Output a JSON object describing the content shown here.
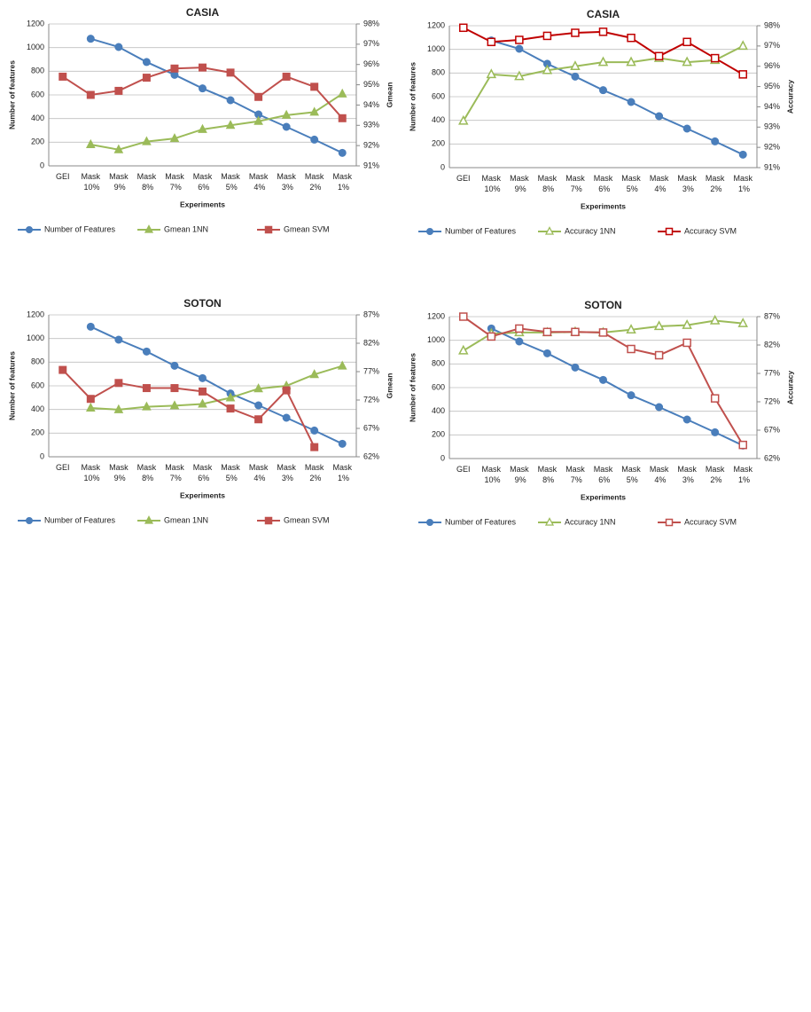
{
  "chart_data": [
    {
      "type": "line",
      "title": "CASIA",
      "x_label": "Experiments",
      "y_label": "Number of features",
      "y2_label": "Gmean",
      "categories": [
        "GEI",
        "Mask 10%",
        "Mask 9%",
        "Mask 8%",
        "Mask 7%",
        "Mask 6%",
        "Mask 5%",
        "Mask 4%",
        "Mask 3%",
        "Mask 2%",
        "Mask 1%"
      ],
      "ylim": [
        0,
        1200
      ],
      "yticks": [
        0,
        200,
        400,
        600,
        800,
        1000,
        1200
      ],
      "y2lim": [
        91,
        98
      ],
      "y2ticks": [
        {
          "value": 91,
          "label": "91%"
        },
        {
          "value": 92,
          "label": "92%"
        },
        {
          "value": 93,
          "label": "93%"
        },
        {
          "value": 94,
          "label": "94%"
        },
        {
          "value": 95,
          "label": "95%"
        },
        {
          "value": 96,
          "label": "96%"
        },
        {
          "value": 97,
          "label": "97%"
        },
        {
          "value": 98,
          "label": "98%"
        }
      ],
      "grid": true,
      "series": [
        {
          "name": "Number of  Features",
          "color": "#4a7ebb",
          "marker": "circle",
          "hollow": false,
          "values": [
            null,
            1075,
            1005,
            878,
            770,
            655,
            555,
            435,
            330,
            222,
            110
          ]
        },
        {
          "name": "Gmean 1NN",
          "color": "#9bbb59",
          "marker": "triangle",
          "hollow": false,
          "axis": "y2",
          "values": [
            null,
            92.05,
            91.8,
            92.2,
            92.35,
            92.8,
            93.0,
            93.2,
            93.5,
            93.65,
            94.55
          ]
        },
        {
          "name": "Gmean SVM",
          "color": "#c0504d",
          "marker": "square",
          "hollow": false,
          "axis": "y2",
          "values": [
            95.4,
            94.5,
            94.7,
            95.35,
            95.8,
            95.85,
            95.6,
            94.4,
            95.4,
            94.9,
            93.35
          ]
        }
      ]
    },
    {
      "type": "line",
      "title": "CASIA",
      "x_label": "Experiments",
      "y_label": "Number of features",
      "y2_label": "Accuracy",
      "categories": [
        "GEI",
        "Mask 10%",
        "Mask 9%",
        "Mask 8%",
        "Mask 7%",
        "Mask 6%",
        "Mask 5%",
        "Mask 4%",
        "Mask 3%",
        "Mask 2%",
        "Mask 1%"
      ],
      "ylim": [
        0,
        1200
      ],
      "yticks": [
        0,
        200,
        400,
        600,
        800,
        1000,
        1200
      ],
      "y2lim": [
        91,
        98
      ],
      "y2ticks": [
        {
          "value": 91,
          "label": "91%"
        },
        {
          "value": 92,
          "label": "92%"
        },
        {
          "value": 93,
          "label": "93%"
        },
        {
          "value": 94,
          "label": "94%"
        },
        {
          "value": 95,
          "label": "95%"
        },
        {
          "value": 96,
          "label": "96%"
        },
        {
          "value": 97,
          "label": "97%"
        },
        {
          "value": 98,
          "label": "98%"
        }
      ],
      "grid": true,
      "series": [
        {
          "name": "Number of  Features",
          "color": "#4a7ebb",
          "marker": "circle",
          "hollow": false,
          "values": [
            null,
            1075,
            1005,
            878,
            770,
            655,
            555,
            435,
            330,
            222,
            110
          ]
        },
        {
          "name": "Accuracy 1NN",
          "color": "#9bbb59",
          "marker": "triangle",
          "hollow": true,
          "axis": "y2",
          "values": [
            93.3,
            95.6,
            95.5,
            95.8,
            96.0,
            96.2,
            96.2,
            96.4,
            96.2,
            96.3,
            97.0
          ]
        },
        {
          "name": "Accuracy SVM",
          "color": "#c00000",
          "marker": "square",
          "hollow": true,
          "axis": "y2",
          "values": [
            97.9,
            97.2,
            97.3,
            97.5,
            97.65,
            97.7,
            97.4,
            96.5,
            97.2,
            96.4,
            95.6
          ]
        }
      ]
    },
    {
      "type": "line",
      "title": "SOTON",
      "x_label": "Experiments",
      "y_label": "Number of features",
      "y2_label": "Gmean",
      "categories": [
        "GEI",
        "Mask 10%",
        "Mask 9%",
        "Mask 8%",
        "Mask 7%",
        "Mask 6%",
        "Mask 5%",
        "Mask 4%",
        "Mask 3%",
        "Mask 2%",
        "Mask 1%"
      ],
      "ylim": [
        0,
        1200
      ],
      "yticks": [
        0,
        200,
        400,
        600,
        800,
        1000,
        1200
      ],
      "y2lim": [
        62,
        87
      ],
      "y2ticks": [
        {
          "value": 62,
          "label": "62%"
        },
        {
          "value": 67,
          "label": "67%"
        },
        {
          "value": 72,
          "label": "72%"
        },
        {
          "value": 77,
          "label": "77%"
        },
        {
          "value": 82,
          "label": "82%"
        },
        {
          "value": 87,
          "label": "87%"
        }
      ],
      "grid": true,
      "series": [
        {
          "name": "Number of  Features",
          "color": "#4a7ebb",
          "marker": "circle",
          "hollow": false,
          "values": [
            null,
            1100,
            990,
            890,
            770,
            665,
            535,
            435,
            330,
            222,
            110
          ]
        },
        {
          "name": "Gmean 1NN",
          "color": "#9bbb59",
          "marker": "triangle",
          "hollow": false,
          "axis": "y2",
          "values": [
            null,
            70.6,
            70.3,
            70.8,
            71.0,
            71.3,
            72.4,
            74.0,
            74.5,
            76.5,
            78.0
          ]
        },
        {
          "name": "Gmean SVM",
          "color": "#c0504d",
          "marker": "square",
          "hollow": false,
          "axis": "y2",
          "values": [
            77.3,
            72.2,
            75.0,
            74.1,
            74.1,
            73.5,
            70.5,
            68.6,
            73.7,
            63.7,
            null
          ]
        }
      ]
    },
    {
      "type": "line",
      "title": "SOTON",
      "x_label": "Experiments",
      "y_label": "Number of features",
      "y2_label": "Accuracy",
      "categories": [
        "GEI",
        "Mask 10%",
        "Mask 9%",
        "Mask 8%",
        "Mask 7%",
        "Mask 6%",
        "Mask 5%",
        "Mask 4%",
        "Mask 3%",
        "Mask 2%",
        "Mask 1%"
      ],
      "ylim": [
        0,
        1200
      ],
      "yticks": [
        0,
        200,
        400,
        600,
        800,
        1000,
        1200
      ],
      "y2lim": [
        62,
        87
      ],
      "y2ticks": [
        {
          "value": 62,
          "label": "62%"
        },
        {
          "value": 67,
          "label": "67%"
        },
        {
          "value": 72,
          "label": "72%"
        },
        {
          "value": 77,
          "label": "77%"
        },
        {
          "value": 82,
          "label": "82%"
        },
        {
          "value": 87,
          "label": "87%"
        }
      ],
      "grid": true,
      "series": [
        {
          "name": "Number of  Features",
          "color": "#4a7ebb",
          "marker": "circle",
          "hollow": false,
          "values": [
            null,
            1100,
            990,
            890,
            770,
            665,
            535,
            435,
            330,
            222,
            110
          ]
        },
        {
          "name": "Accuracy 1NN",
          "color": "#9bbb59",
          "marker": "triangle",
          "hollow": true,
          "axis": "y2",
          "values": [
            81.0,
            84.0,
            84.2,
            84.2,
            84.3,
            84.2,
            84.7,
            85.3,
            85.5,
            86.3,
            85.8
          ]
        },
        {
          "name": "Accuracy SVM",
          "color": "#c0504d",
          "marker": "square",
          "hollow": true,
          "axis": "y2",
          "values": [
            87.0,
            83.5,
            84.9,
            84.3,
            84.3,
            84.2,
            81.3,
            80.2,
            82.4,
            72.6,
            64.4
          ]
        }
      ]
    }
  ]
}
